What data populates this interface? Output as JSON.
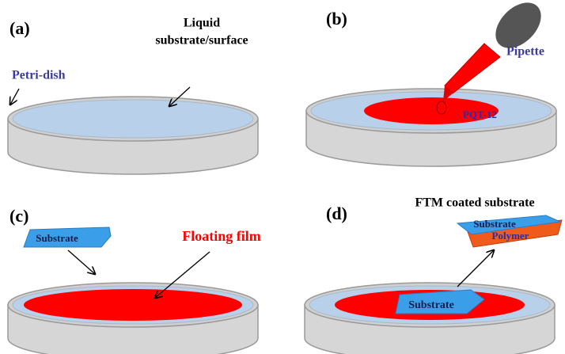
{
  "panels": [
    {
      "label": "(a)",
      "liquid_label": [
        "Liquid",
        "substrate/surface"
      ],
      "dish_label": "Petri-dish"
    },
    {
      "label": "(b)",
      "pipette_label": "Pipette",
      "film_label": "PQT-12"
    },
    {
      "label": "(c)",
      "substrate_label": "Substrate",
      "film_label": "Floating film"
    },
    {
      "label": "(d)",
      "result_label": "FTM coated substrate",
      "top_substrate_label": "Substrate",
      "polymer_label": "Polymer",
      "substrate_label": "Substrate"
    }
  ]
}
